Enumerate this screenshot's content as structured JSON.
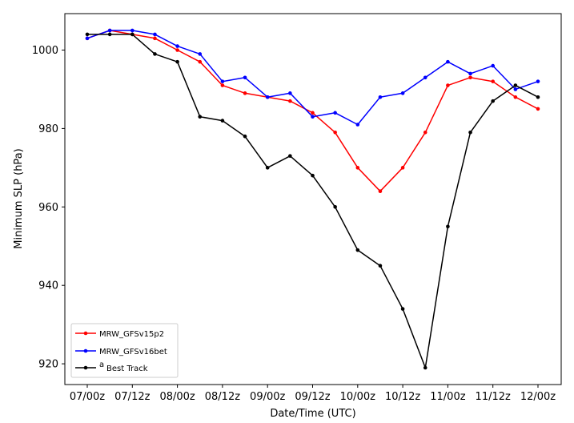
{
  "chart_data": {
    "type": "line",
    "xlabel": "Date/Time (UTC)",
    "ylabel": "Minimum SLP (hPa)",
    "x_tick_labels": [
      "07/00z",
      "07/12z",
      "08/00z",
      "08/12z",
      "09/00z",
      "09/12z",
      "10/00z",
      "10/12z",
      "11/00z",
      "11/12z",
      "12/00z"
    ],
    "y_tick_labels": [
      "920",
      "940",
      "960",
      "980",
      "1000"
    ],
    "y_ticks": [
      920,
      940,
      960,
      980,
      1000
    ],
    "ylim": [
      915,
      1009
    ],
    "x_step_hours": 6,
    "legend_position": "lower-left",
    "grid": false,
    "series": [
      {
        "name": "MRW_GFSv15p2",
        "color": "#ff0000",
        "values": [
          1003,
          1005,
          1004,
          1003,
          1000,
          997,
          991,
          989,
          988,
          987,
          984,
          979,
          970,
          964,
          970,
          979,
          991,
          993,
          992,
          988,
          985
        ]
      },
      {
        "name": "MRW_GFSv16bet",
        "color": "#0000ff",
        "values": [
          1003,
          1005,
          1005,
          1004,
          1001,
          999,
          992,
          993,
          988,
          989,
          983,
          984,
          981,
          988,
          989,
          993,
          997,
          994,
          996,
          990,
          992
        ]
      },
      {
        "name": "Best Track",
        "legend_prefix": "a",
        "color": "#000000",
        "values": [
          1004,
          1004,
          1004,
          999,
          997,
          983,
          982,
          978,
          970,
          973,
          968,
          960,
          949,
          945,
          934,
          919,
          955,
          979,
          987,
          991,
          988
        ]
      }
    ]
  }
}
